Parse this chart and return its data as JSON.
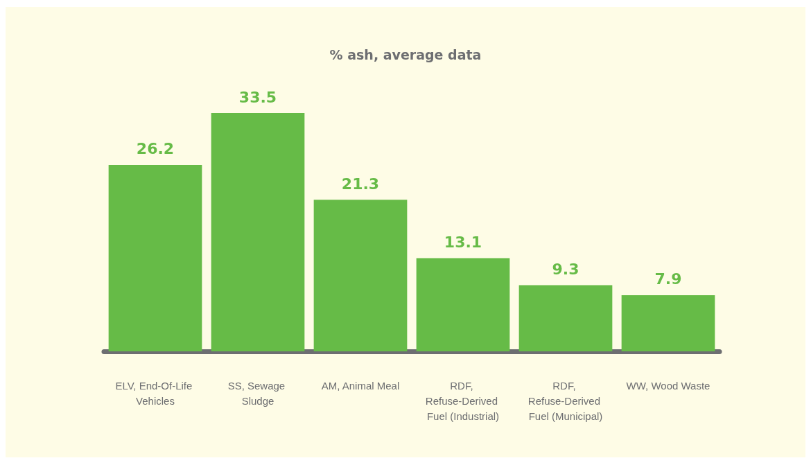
{
  "chart_data": {
    "type": "bar",
    "title": "% ash, average data",
    "categories": [
      "ELV, End-Of-Life Vehicles",
      "SS, Sewage Sludge",
      "AM, Animal Meal",
      "RDF, Refuse-Derived Fuel (Industrial)",
      "RDF, Refuse-Derived Fuel (Municipal)",
      "WW, Wood Waste"
    ],
    "values": [
      26.2,
      33.5,
      21.3,
      13.1,
      9.3,
      7.9
    ],
    "color": "#66bb47",
    "data_labels": true
  }
}
